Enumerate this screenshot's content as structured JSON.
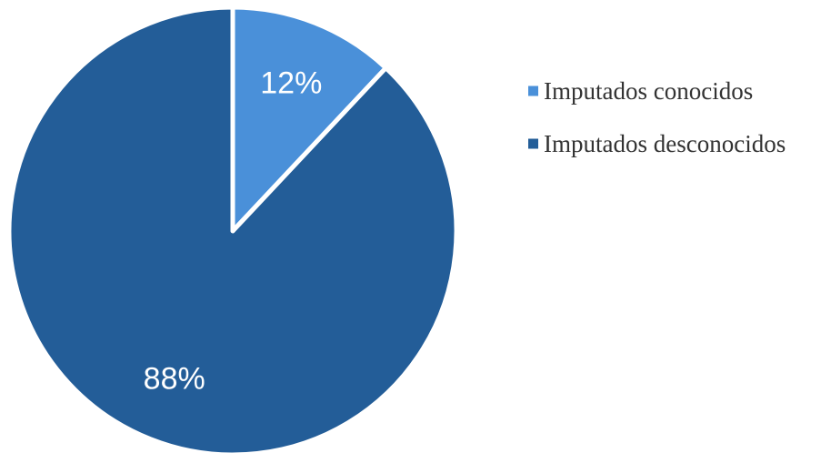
{
  "chart_data": {
    "type": "pie",
    "title": "",
    "slices": [
      {
        "label": "Imputados conocidos",
        "value": 12,
        "value_label": "12%",
        "color": "#4a90d9"
      },
      {
        "label": "Imputados desconocidos",
        "value": 88,
        "value_label": "88%",
        "color": "#235d98"
      }
    ],
    "start": "12 o'clock",
    "direction": "clockwise",
    "slice_separator_color": "#ffffff",
    "legend": {
      "position": "right"
    }
  }
}
